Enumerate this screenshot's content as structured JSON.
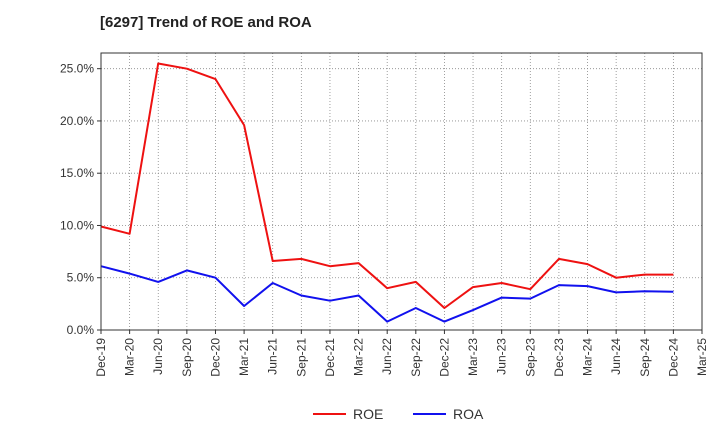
{
  "chart_data": {
    "type": "line",
    "title": "[6297]  Trend of ROE and ROA",
    "xlabel": "",
    "ylabel": "",
    "categories": [
      "Dec-19",
      "Mar-20",
      "Jun-20",
      "Sep-20",
      "Dec-20",
      "Mar-21",
      "Jun-21",
      "Sep-21",
      "Dec-21",
      "Mar-22",
      "Jun-22",
      "Sep-22",
      "Dec-22",
      "Mar-23",
      "Jun-23",
      "Sep-23",
      "Dec-23",
      "Mar-24",
      "Jun-24",
      "Sep-24",
      "Dec-24",
      "Mar-25"
    ],
    "ylim": [
      0,
      26.5
    ],
    "yticks": [
      0,
      5,
      10,
      15,
      20,
      25
    ],
    "ytick_labels": [
      "0.0%",
      "5.0%",
      "10.0%",
      "15.0%",
      "20.0%",
      "25.0%"
    ],
    "grid": true,
    "legend_position": "bottom-center",
    "series": [
      {
        "name": "ROE",
        "color": "#ee1111",
        "values": [
          9.9,
          9.2,
          25.5,
          25.0,
          24.0,
          19.6,
          6.6,
          6.8,
          6.1,
          6.4,
          4.0,
          4.6,
          2.1,
          4.1,
          4.5,
          3.9,
          6.8,
          6.3,
          5.0,
          5.3,
          5.3,
          null
        ]
      },
      {
        "name": "ROA",
        "color": "#1111ee",
        "values": [
          6.1,
          5.4,
          4.6,
          5.7,
          5.0,
          2.3,
          4.5,
          3.3,
          2.8,
          3.3,
          0.8,
          2.1,
          0.8,
          1.9,
          3.1,
          3.0,
          4.3,
          4.2,
          3.6,
          3.7,
          3.65,
          null
        ]
      }
    ]
  }
}
